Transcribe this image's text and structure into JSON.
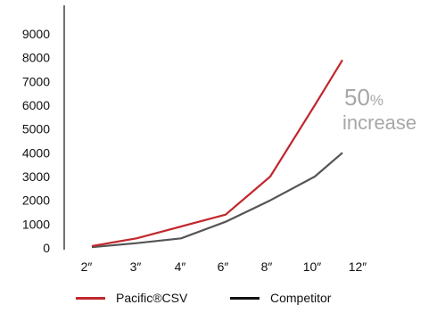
{
  "chart_data": {
    "type": "line",
    "categories": [
      "2″",
      "3″",
      "4″",
      "6″",
      "8″",
      "10″",
      "12″"
    ],
    "series": [
      {
        "name": "Pacific®CSV",
        "color": "#c1272d",
        "values": [
          80,
          400,
          900,
          1400,
          3000,
          6000,
          7900
        ]
      },
      {
        "name": "Competitor",
        "color": "#555555",
        "values": [
          30,
          200,
          400,
          1100,
          2000,
          3000,
          4000
        ]
      }
    ],
    "yticks": [
      0,
      1000,
      2000,
      3000,
      4000,
      5000,
      6000,
      7000,
      8000,
      9000
    ],
    "ylim": [
      0,
      9000
    ],
    "annotation": {
      "value": "50",
      "unit": "%",
      "text": "increase"
    },
    "grid": false,
    "legend_position": "bottom"
  }
}
